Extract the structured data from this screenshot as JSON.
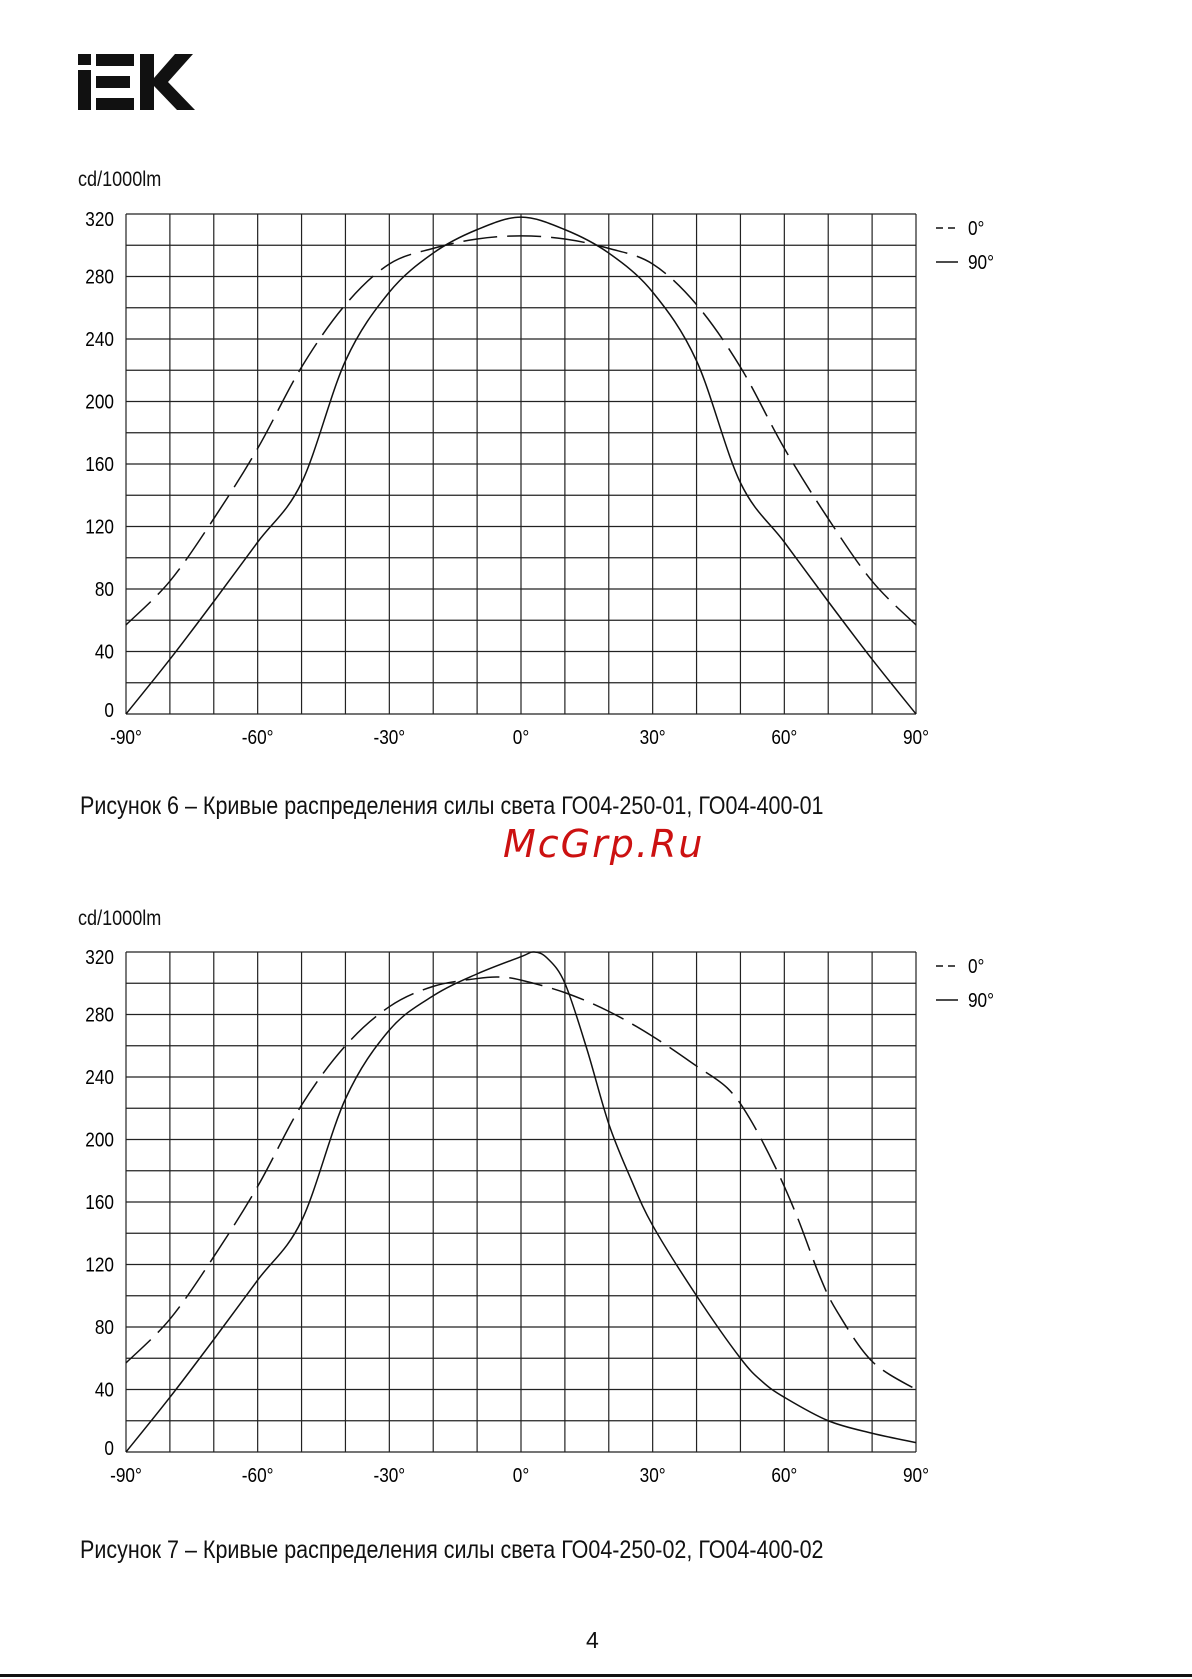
{
  "brand": {
    "logo_text": "IEK",
    "logo_color": "#111111"
  },
  "chart_data": [
    {
      "type": "line",
      "ylabel": "cd/1000lm",
      "xlim": [
        -90,
        90
      ],
      "ylim": [
        0,
        320
      ],
      "x_ticks": [
        "-90°",
        "-60°",
        "-30°",
        "0°",
        "30°",
        "60°",
        "90°"
      ],
      "y_ticks": [
        "0",
        "40",
        "80",
        "120",
        "160",
        "200",
        "240",
        "280",
        "320"
      ],
      "grid": true,
      "legend_position": "top-right",
      "series": [
        {
          "name": "0°",
          "style": "dashed",
          "x": [
            -90,
            -80,
            -70,
            -60,
            -50,
            -40,
            -30,
            -20,
            -10,
            0,
            10,
            20,
            30,
            40,
            50,
            60,
            70,
            80,
            90
          ],
          "y": [
            57,
            85,
            125,
            170,
            222,
            262,
            288,
            298,
            304,
            306,
            304,
            298,
            288,
            262,
            222,
            170,
            125,
            85,
            57
          ]
        },
        {
          "name": "90°",
          "style": "solid",
          "x": [
            -90,
            -80,
            -70,
            -60,
            -50,
            -40,
            -30,
            -20,
            -10,
            0,
            10,
            20,
            30,
            40,
            50,
            60,
            70,
            80,
            90
          ],
          "y": [
            0,
            35,
            72,
            110,
            148,
            226,
            270,
            295,
            310,
            318,
            310,
            295,
            270,
            226,
            148,
            110,
            72,
            35,
            0
          ]
        }
      ]
    },
    {
      "type": "line",
      "ylabel": "cd/1000lm",
      "xlim": [
        -90,
        90
      ],
      "ylim": [
        0,
        320
      ],
      "x_ticks": [
        "-90°",
        "-60°",
        "-30°",
        "0°",
        "30°",
        "60°",
        "90°"
      ],
      "y_ticks": [
        "0",
        "40",
        "80",
        "120",
        "160",
        "200",
        "240",
        "280",
        "320"
      ],
      "grid": true,
      "legend_position": "top-right",
      "series": [
        {
          "name": "0°",
          "style": "dashed",
          "x": [
            -90,
            -80,
            -70,
            -60,
            -50,
            -40,
            -30,
            -20,
            -10,
            -5,
            0,
            10,
            20,
            30,
            40,
            47,
            52,
            58,
            63,
            68,
            72,
            80,
            90
          ],
          "y": [
            57,
            85,
            125,
            170,
            222,
            260,
            285,
            298,
            303,
            304,
            302,
            294,
            282,
            266,
            247,
            233,
            214,
            182,
            150,
            113,
            90,
            58,
            40
          ]
        },
        {
          "name": "90°",
          "style": "solid",
          "x": [
            -90,
            -80,
            -70,
            -60,
            -50,
            -40,
            -30,
            -20,
            -10,
            0,
            3,
            6,
            10,
            15,
            20,
            25,
            30,
            40,
            50,
            55,
            60,
            70,
            80,
            90
          ],
          "y": [
            0,
            35,
            72,
            110,
            148,
            226,
            270,
            292,
            306,
            317,
            320,
            316,
            300,
            258,
            210,
            175,
            145,
            100,
            60,
            45,
            35,
            20,
            12,
            6
          ]
        }
      ]
    }
  ],
  "figures": {
    "fig6": {
      "caption": "Рисунок 6 – Кривые распределения силы света ГО04-250-01, ГО04-400-01"
    },
    "fig7": {
      "caption": "Рисунок 7 – Кривые распределения силы света ГО04-250-02, ГО04-400-02"
    }
  },
  "watermark": {
    "text": "McGrp.Ru",
    "color": "#cc1111"
  },
  "page_number": "4"
}
